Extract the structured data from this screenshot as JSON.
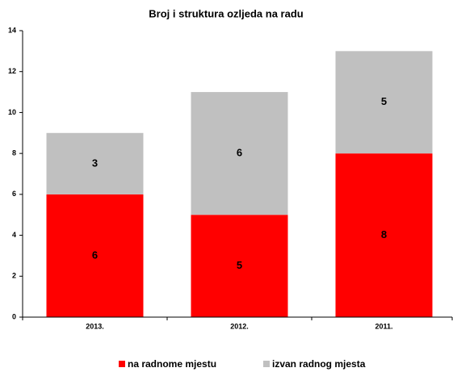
{
  "chart_data": {
    "type": "stacked_bar",
    "title": "Broj i struktura ozljeda na radu",
    "categories": [
      "2013.",
      "2012.",
      "2011."
    ],
    "series": [
      {
        "name": "na radnome mjestu",
        "color": "#ff0000",
        "values": [
          6,
          5,
          8
        ]
      },
      {
        "name": "izvan radnog mjesta",
        "color": "#c0c0c0",
        "values": [
          3,
          6,
          5
        ]
      }
    ],
    "ylim": [
      0,
      14
    ],
    "yticks": [
      0,
      2,
      4,
      6,
      8,
      10,
      12,
      14
    ],
    "grid": false,
    "legend": "bottom"
  }
}
